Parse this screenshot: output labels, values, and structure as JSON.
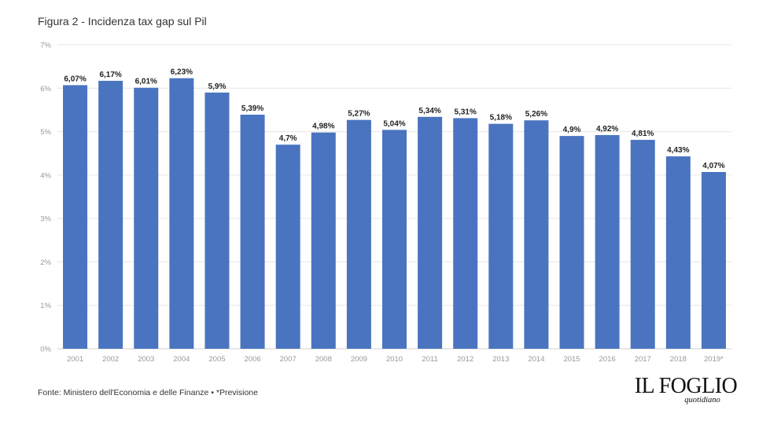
{
  "figure": {
    "top_caption": "",
    "title": "Figura 2 - Incidenza tax gap sul Pil",
    "source": "Fonte: Ministero dell'Economia e delle Finanze • *Previsione",
    "logo_main": "IL FOGLIO",
    "logo_sub": "quotidiano",
    "bar_color": "#4a74c0",
    "grid_color": "#e6e6e6"
  },
  "chart_data": {
    "type": "bar",
    "title": "Figura 2 - Incidenza tax gap sul Pil",
    "xlabel": "",
    "ylabel": "",
    "categories": [
      "2001",
      "2002",
      "2003",
      "2004",
      "2005",
      "2006",
      "2007",
      "2008",
      "2009",
      "2010",
      "2011",
      "2012",
      "2013",
      "2014",
      "2015",
      "2016",
      "2017",
      "2018",
      "2019*"
    ],
    "values": [
      6.07,
      6.17,
      6.01,
      6.23,
      5.9,
      5.39,
      4.7,
      4.98,
      5.27,
      5.04,
      5.34,
      5.31,
      5.18,
      5.26,
      4.9,
      4.92,
      4.81,
      4.43,
      4.07
    ],
    "data_labels": [
      "6,07%",
      "6,17%",
      "6,01%",
      "6,23%",
      "5,9%",
      "5,39%",
      "4,7%",
      "4,98%",
      "5,27%",
      "5,04%",
      "5,34%",
      "5,31%",
      "5,18%",
      "5,26%",
      "4,9%",
      "4,92%",
      "4,81%",
      "4,43%",
      "4,07%"
    ],
    "ylim": [
      0,
      7
    ],
    "yticks": [
      0,
      1,
      2,
      3,
      4,
      5,
      6,
      7
    ],
    "ytick_labels": [
      "0%",
      "1%",
      "2%",
      "3%",
      "4%",
      "5%",
      "6%",
      "7%"
    ],
    "grid": true,
    "legend": "none"
  }
}
